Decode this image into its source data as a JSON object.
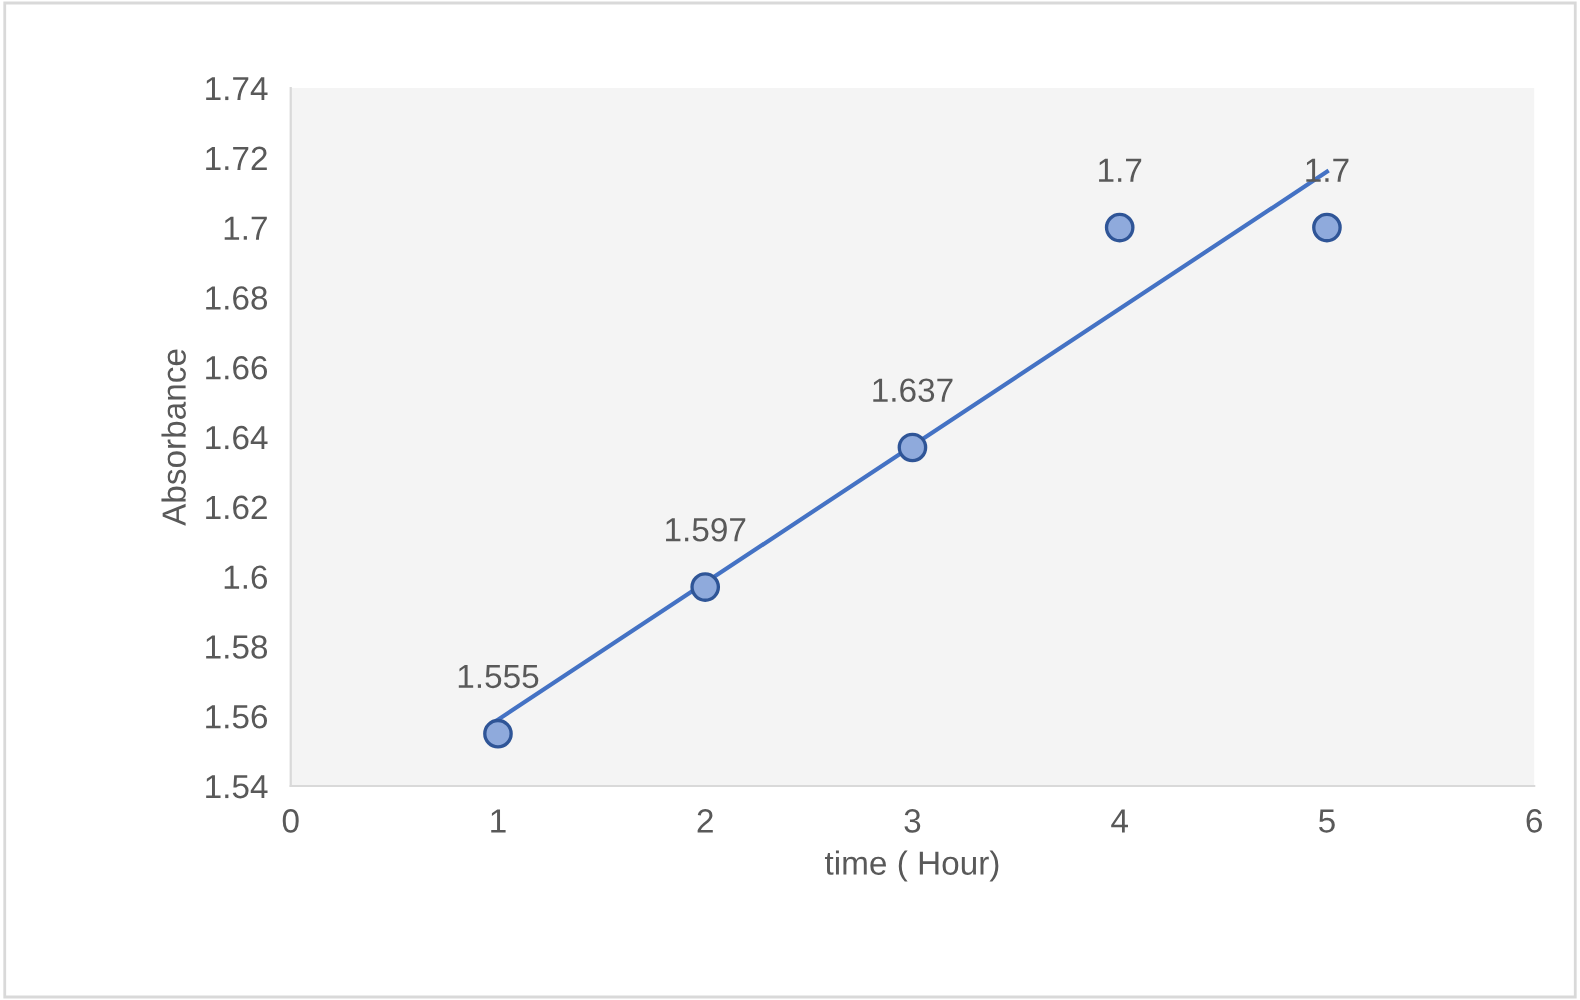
{
  "chart_data": {
    "type": "scatter",
    "xlabel": "time ( Hour)",
    "ylabel": "Absorbance",
    "xlim": [
      0,
      6
    ],
    "xticks": [
      0,
      1,
      2,
      3,
      4,
      5,
      6
    ],
    "ylim": [
      1.54,
      1.74
    ],
    "yticks": [
      1.54,
      1.56,
      1.58,
      1.6,
      1.62,
      1.64,
      1.66,
      1.68,
      1.7,
      1.72,
      1.74
    ],
    "series": [
      {
        "color": "#8faadc",
        "marker": "circle",
        "x": [
          1,
          2,
          3,
          4,
          5
        ],
        "values": [
          1.555,
          1.597,
          1.637,
          1.7,
          1.7
        ],
        "value_labels": [
          "1.555",
          "1.597",
          "1.637",
          "1.7",
          "1.7"
        ]
      },
      {
        "type": "line",
        "marker": "none",
        "color": "#4472c4",
        "x": [
          1,
          5
        ],
        "values": [
          1.559,
          1.716
        ]
      }
    ]
  }
}
